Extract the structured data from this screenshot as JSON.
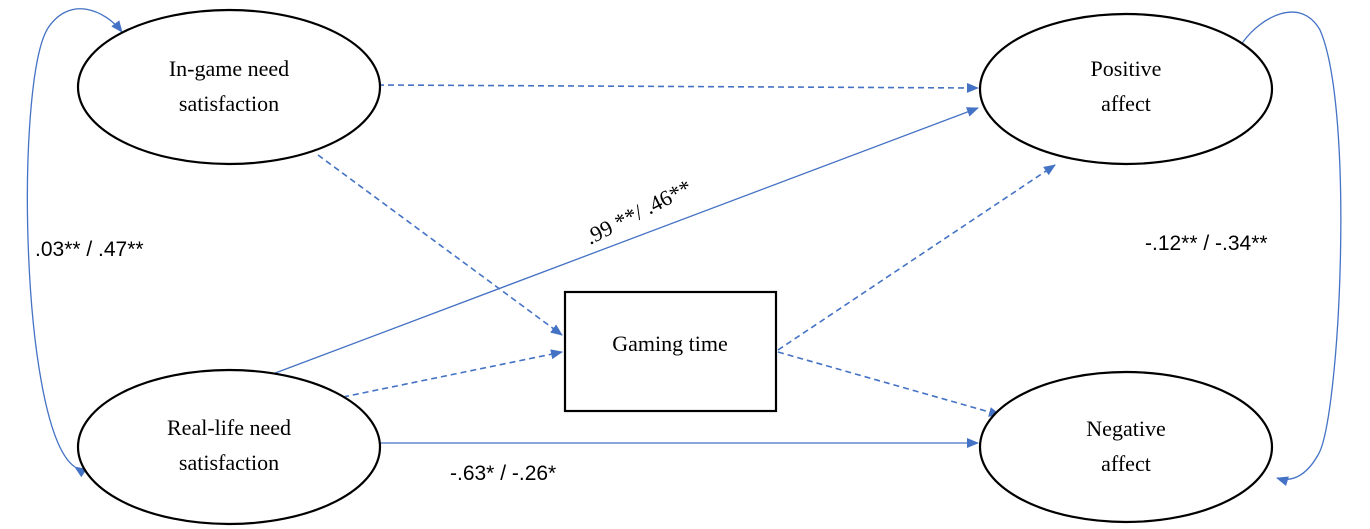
{
  "nodes": {
    "in_game": {
      "line1": "In-game need",
      "line2": "satisfaction"
    },
    "real_life": {
      "line1": "Real-life need",
      "line2": "satisfaction"
    },
    "positive": {
      "line1": "Positive",
      "line2": "affect"
    },
    "negative": {
      "line1": "Negative",
      "line2": "affect"
    },
    "gaming": {
      "label": "Gaming time"
    }
  },
  "coefficients": {
    "left_covariance": ".03** / .47**",
    "right_covariance": "-.12** / -.34**",
    "real_to_positive": ".99 **/ .46**",
    "real_to_negative": "-.63* / -.26*"
  },
  "colors": {
    "arrow": "#4472C4",
    "outline": "#000000"
  }
}
